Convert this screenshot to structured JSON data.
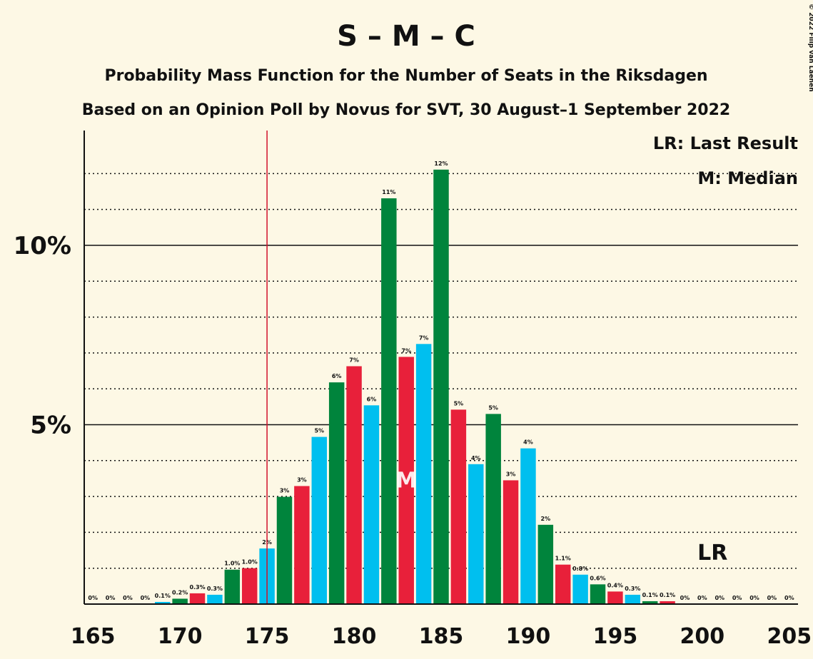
{
  "chart_data": {
    "type": "bar",
    "title": "S – M – C",
    "subtitle": "Probability Mass Function for the Number of Seats in the Riksdagen",
    "subtitle2": "Based on an Opinion Poll by Novus for SVT, 30 August–1 September 2022",
    "copyright": "© 2022 Filip van Laenen",
    "legend": [
      "LR: Last Result",
      "M: Median"
    ],
    "x": [
      165,
      166,
      167,
      168,
      169,
      170,
      171,
      172,
      173,
      174,
      175,
      176,
      177,
      178,
      179,
      180,
      181,
      182,
      183,
      184,
      185,
      186,
      187,
      188,
      189,
      190,
      191,
      192,
      193,
      194,
      195,
      196,
      197,
      198,
      199,
      200,
      201,
      202,
      203,
      204,
      205
    ],
    "values": [
      0,
      0,
      0,
      0,
      0.06,
      0.15,
      0.3,
      0.26,
      0.96,
      1.0,
      1.55,
      2.99,
      3.29,
      4.66,
      6.18,
      6.63,
      5.54,
      11.31,
      6.89,
      7.25,
      12.11,
      5.42,
      3.9,
      5.3,
      3.45,
      4.34,
      2.21,
      1.1,
      0.82,
      0.55,
      0.35,
      0.26,
      0.08,
      0.08,
      0,
      0,
      0,
      0,
      0,
      0,
      0
    ],
    "value_labels": [
      "0%",
      "0%",
      "0%",
      "0%",
      "0.1%",
      "0.2%",
      "0.3%",
      "0.3%",
      "1.0%",
      "1.0%",
      "2%",
      "3%",
      "3%",
      "5%",
      "6%",
      "7%",
      "6%",
      "11%",
      "7%",
      "7%",
      "12%",
      "5%",
      "4%",
      "5%",
      "3%",
      "4%",
      "2%",
      "1.1%",
      "0.8%",
      "0.6%",
      "0.4%",
      "0.3%",
      "0.1%",
      "0.1%",
      "0%",
      "0%",
      "0%",
      "0%",
      "0%",
      "0%",
      "0%"
    ],
    "palette": [
      "#E8203A",
      "#00BFEF",
      "#00843C"
    ],
    "xlim": [
      164.5,
      205.5
    ],
    "xticks": [
      165,
      170,
      175,
      180,
      185,
      190,
      195,
      200,
      205
    ],
    "ylim": [
      0,
      13.2
    ],
    "yticks": [
      {
        "value": 5,
        "label": "5%"
      },
      {
        "value": 10,
        "label": "10%"
      }
    ],
    "y_minor_ticks": [
      1,
      2,
      3,
      4,
      6,
      7,
      8,
      9,
      11,
      12
    ],
    "majority_line": 175,
    "median": 183,
    "median_label": "M",
    "last_result": 201,
    "last_result_label": "LR"
  }
}
